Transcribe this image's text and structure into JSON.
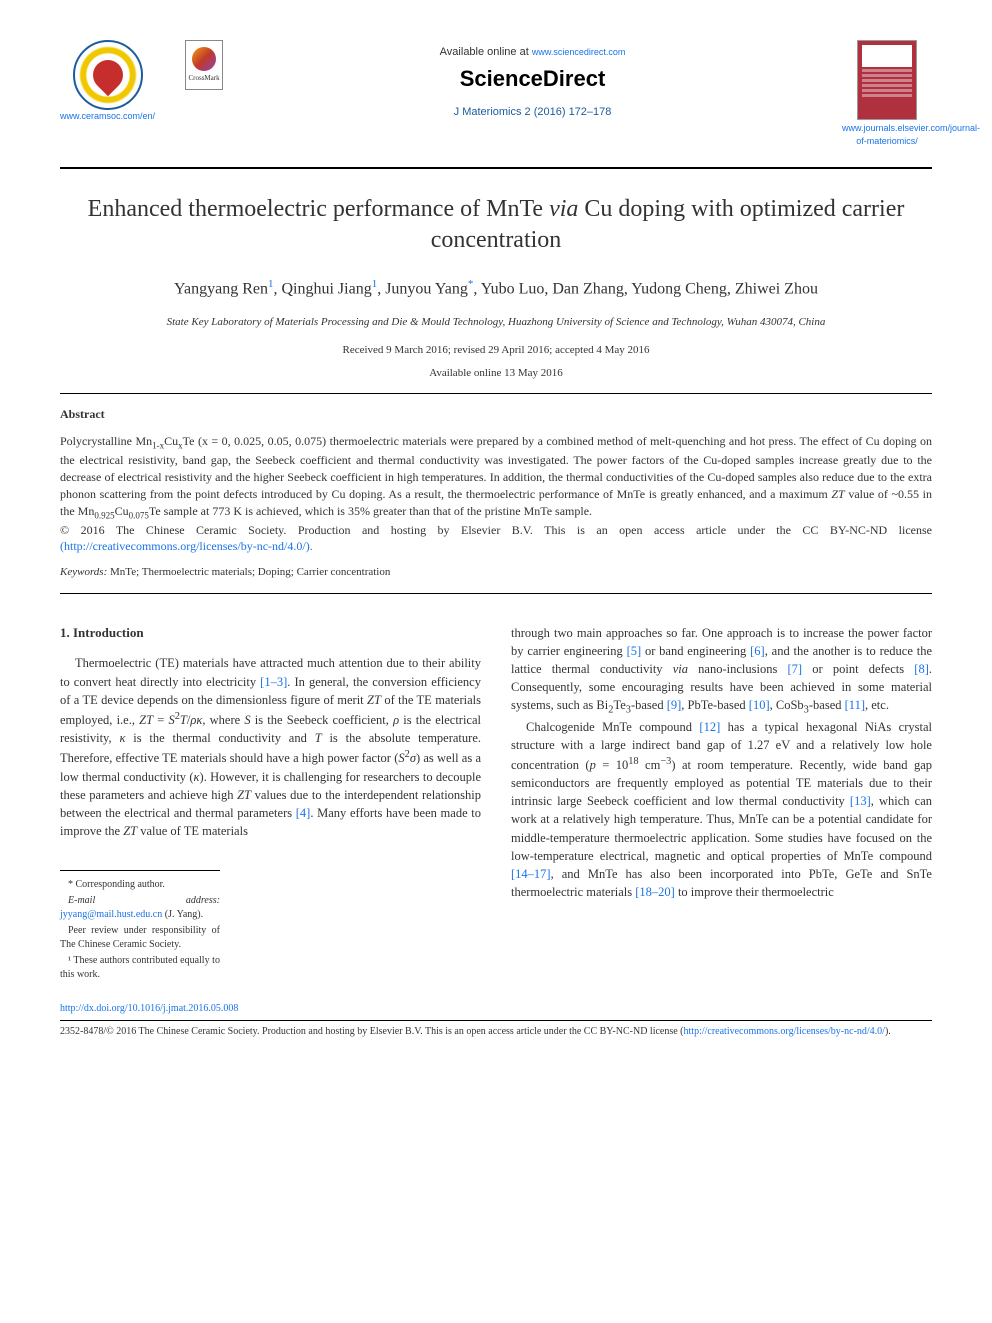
{
  "header": {
    "society_link": "www.ceramsoc.com/en/",
    "crossmark_label": "CrossMark",
    "available_prefix": "Available online at ",
    "sciencedirect_url": "www.sciencedirect.com",
    "sciencedirect_logo": "ScienceDirect",
    "journal_citation": "J Materiomics 2 (2016) 172–178",
    "journal_link": "www.journals.elsevier.com/journal-of-materiomics/"
  },
  "title_html": "Enhanced thermoelectric performance of MnTe <em>via</em> Cu doping with optimized carrier concentration",
  "authors_html": "Yangyang Ren<sup>1</sup>, Qinghui Jiang<sup>1</sup>, Junyou Yang<sup>*</sup>, Yubo Luo, Dan Zhang, Yudong Cheng, Zhiwei Zhou",
  "affiliation": "State Key Laboratory of Materials Processing and Die & Mould Technology, Huazhong University of Science and Technology, Wuhan 430074, China",
  "dates_line1": "Received 9 March 2016; revised 29 April 2016; accepted 4 May 2016",
  "dates_line2": "Available online 13 May 2016",
  "abstract": {
    "heading": "Abstract",
    "body_html": "Polycrystalline Mn<sub>1-x</sub>Cu<sub>x</sub>Te (x = 0, 0.025, 0.05, 0.075) thermoelectric materials were prepared by a combined method of melt-quenching and hot press. The effect of Cu doping on the electrical resistivity, band gap, the Seebeck coefficient and thermal conductivity was investigated. The power factors of the Cu-doped samples increase greatly due to the decrease of electrical resistivity and the higher Seebeck coefficient in high temperatures. In addition, the thermal conductivities of the Cu-doped samples also reduce due to the extra phonon scattering from the point defects introduced by Cu doping. As a result, the thermoelectric performance of MnTe is greatly enhanced, and a maximum <em>ZT</em> value of ~0.55 in the Mn<sub>0.925</sub>Cu<sub>0.075</sub>Te sample at 773 K is achieved, which is 35% greater than that of the pristine MnTe sample.",
    "copyright": "© 2016 The Chinese Ceramic Society. Production and hosting by Elsevier B.V. This is an open access article under the CC BY-NC-ND license ",
    "license_url": "(http://creativecommons.org/licenses/by-nc-nd/4.0/).",
    "keywords_label": "Keywords:",
    "keywords_text": " MnTe; Thermoelectric materials; Doping; Carrier concentration"
  },
  "body": {
    "section_heading": "1. Introduction",
    "col1_p1_html": "Thermoelectric (TE) materials have attracted much attention due to their ability to convert heat directly into electricity <span class='ref-link'>[1–3]</span>. In general, the conversion efficiency of a TE device depends on the dimensionless figure of merit <em>ZT</em> of the TE materials employed, i.e., <em>ZT</em> = <em>S</em><sup>2</sup><em>T</em>/<em>ρκ</em>, where <em>S</em> is the Seebeck coefficient, <em>ρ</em> is the electrical resistivity, <em>κ</em> is the thermal conductivity and <em>T</em> is the absolute temperature. Therefore, effective TE materials should have a high power factor (<em>S</em><sup>2</sup><em>σ</em>) as well as a low thermal conductivity (<em>κ</em>). However, it is challenging for researchers to decouple these parameters and achieve high <em>ZT</em> values due to the interdependent relationship between the electrical and thermal parameters <span class='ref-link'>[4]</span>. Many efforts have been made to improve the <em>ZT</em> value of TE materials",
    "col2_p1_html": "through two main approaches so far. One approach is to increase the power factor by carrier engineering <span class='ref-link'>[5]</span> or band engineering <span class='ref-link'>[6]</span>, and the another is to reduce the lattice thermal conductivity <em>via</em> nano-inclusions <span class='ref-link'>[7]</span> or point defects <span class='ref-link'>[8]</span>. Consequently, some encouraging results have been achieved in some material systems, such as Bi<sub>2</sub>Te<sub>3</sub>-based <span class='ref-link'>[9]</span>, PbTe-based <span class='ref-link'>[10]</span>, CoSb<sub>3</sub>-based <span class='ref-link'>[11]</span>, etc.",
    "col2_p2_html": "Chalcogenide MnTe compound <span class='ref-link'>[12]</span> has a typical hexagonal NiAs crystal structure with a large indirect band gap of 1.27 eV and a relatively low hole concentration (<em>p</em> = 10<sup>18</sup> cm<sup>−3</sup>) at room temperature. Recently, wide band gap semiconductors are frequently employed as potential TE materials due to their intrinsic large Seebeck coefficient and low thermal conductivity <span class='ref-link'>[13]</span>, which can work at a relatively high temperature. Thus, MnTe can be a potential candidate for middle-temperature thermoelectric application. Some studies have focused on the low-temperature electrical, magnetic and optical properties of MnTe compound <span class='ref-link'>[14–17]</span>, and MnTe has also been incorporated into PbTe, GeTe and SnTe thermoelectric materials <span class='ref-link'>[18–20]</span> to improve their thermoelectric"
  },
  "footnotes": {
    "corresponding": "* Corresponding author.",
    "email_label": "E-mail address: ",
    "email": "jyyang@mail.hust.edu.cn",
    "email_suffix": " (J. Yang).",
    "peer_review": "Peer review under responsibility of The Chinese Ceramic Society.",
    "equal_contrib": "¹ These authors contributed equally to this work."
  },
  "footer": {
    "doi": "http://dx.doi.org/10.1016/j.jmat.2016.05.008",
    "issn_line": "2352-8478/© 2016 The Chinese Ceramic Society. Production and hosting by Elsevier B.V. This is an open access article under the CC BY-NC-ND license (",
    "license_url": "http://creativecommons.org/licenses/by-nc-nd/4.0/",
    "license_close": ")."
  },
  "colors": {
    "link": "#1a73e8",
    "link_dark": "#1a5c9e",
    "text": "#333333",
    "background": "#ffffff"
  }
}
